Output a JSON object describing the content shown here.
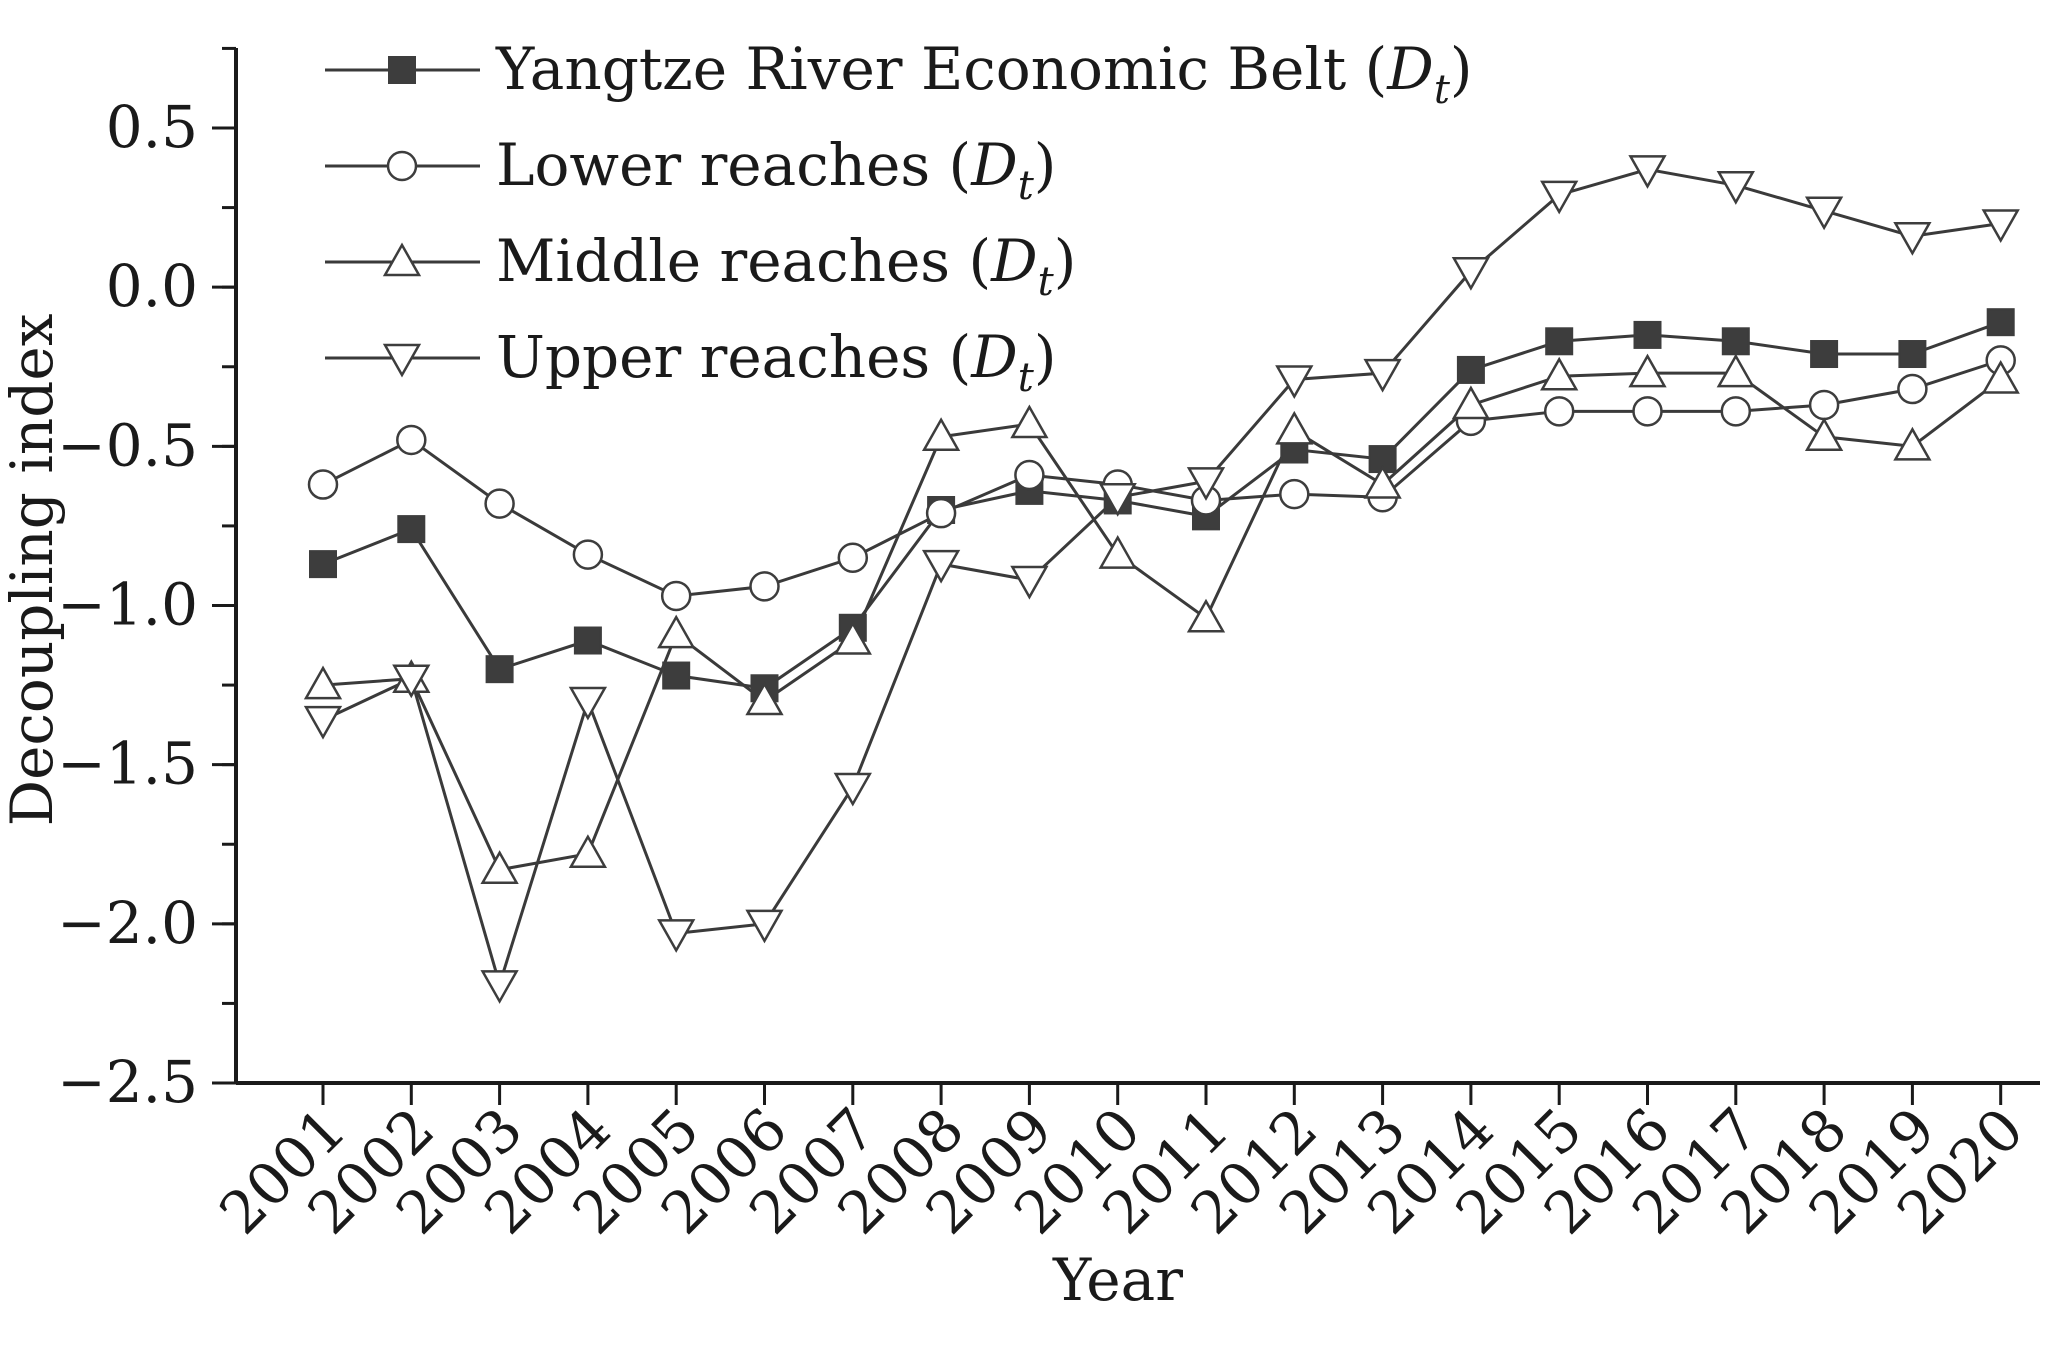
{
  "chart_data": {
    "type": "line",
    "xlabel": "Year",
    "ylabel": "Decoupling index",
    "ylim": [
      -2.5,
      0.75
    ],
    "yticks": [
      0.5,
      0.0,
      -0.5,
      -1.0,
      -1.5,
      -2.0,
      -2.5
    ],
    "ytick_labels": [
      "0.5",
      "0.0",
      "−0.5",
      "−1.0",
      "−1.5",
      "−2.0",
      "−2.5"
    ],
    "categories": [
      "2001",
      "2002",
      "2003",
      "2004",
      "2005",
      "2006",
      "2007",
      "2008",
      "2009",
      "2010",
      "2011",
      "2012",
      "2013",
      "2014",
      "2015",
      "2016",
      "2017",
      "2018",
      "2019",
      "2020"
    ],
    "legend_position": "top-left",
    "series": [
      {
        "name": "Yangtze River Economic Belt",
        "legend_main": "Yangtze River Economic Belt (",
        "legend_sym": "D",
        "legend_sub": "t",
        "legend_close": ")",
        "marker": "filled-square",
        "values": [
          -0.87,
          -0.76,
          -1.2,
          -1.11,
          -1.22,
          -1.26,
          -1.07,
          -0.7,
          -0.64,
          -0.67,
          -0.72,
          -0.51,
          -0.54,
          -0.26,
          -0.17,
          -0.15,
          -0.17,
          -0.21,
          -0.21,
          -0.11
        ]
      },
      {
        "name": "Lower reaches",
        "legend_main": "Lower reaches (",
        "legend_sym": "D",
        "legend_sub": "t",
        "legend_close": ")",
        "marker": "open-circle",
        "values": [
          -0.62,
          -0.48,
          -0.68,
          -0.84,
          -0.97,
          -0.94,
          -0.85,
          -0.71,
          -0.59,
          -0.62,
          -0.67,
          -0.65,
          -0.66,
          -0.42,
          -0.39,
          -0.39,
          -0.39,
          -0.37,
          -0.32,
          -0.23
        ]
      },
      {
        "name": "Middle reaches",
        "legend_main": "Middle reaches (",
        "legend_sym": "D",
        "legend_sub": "t",
        "legend_close": ")",
        "marker": "open-triangle-up",
        "values": [
          -1.25,
          -1.23,
          -1.83,
          -1.78,
          -1.09,
          -1.3,
          -1.11,
          -0.47,
          -0.43,
          -0.84,
          -1.04,
          -0.45,
          -0.62,
          -0.37,
          -0.28,
          -0.27,
          -0.27,
          -0.47,
          -0.5,
          -0.29
        ]
      },
      {
        "name": "Upper reaches",
        "legend_main": "Upper reaches (",
        "legend_sym": "D",
        "legend_sub": "t",
        "legend_close": ")",
        "marker": "open-triangle-down",
        "values": [
          -1.36,
          -1.23,
          -2.19,
          -1.3,
          -2.03,
          -2.0,
          -1.57,
          -0.87,
          -0.92,
          -0.66,
          -0.61,
          -0.29,
          -0.27,
          0.05,
          0.29,
          0.37,
          0.32,
          0.24,
          0.16,
          0.2
        ]
      }
    ]
  }
}
